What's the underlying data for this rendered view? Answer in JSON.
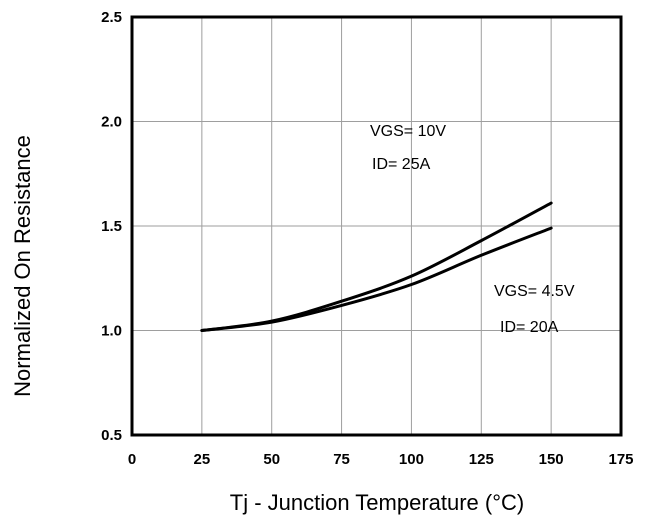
{
  "chart_data": {
    "type": "line",
    "xlabel": "Tj - Junction Temperature (°C)",
    "ylabel": "Normalized On Resistance",
    "xlim": [
      0,
      175
    ],
    "ylim": [
      0.5,
      2.5
    ],
    "x_ticks": [
      0,
      25,
      50,
      75,
      100,
      125,
      150,
      175
    ],
    "x_tick_labels": [
      "0",
      "25",
      "50",
      "75",
      "100",
      "125",
      "150",
      "175"
    ],
    "y_ticks": [
      0.5,
      1.0,
      1.5,
      2.0,
      2.5
    ],
    "y_tick_labels": [
      "0.5",
      "1.0",
      "1.5",
      "2.0",
      "2.5"
    ],
    "grid": true,
    "series": [
      {
        "x": [
          25,
          50,
          75,
          100,
          125,
          150
        ],
        "y": [
          1.0,
          1.045,
          1.14,
          1.26,
          1.43,
          1.61
        ]
      },
      {
        "x": [
          25,
          50,
          75,
          100,
          125,
          150
        ],
        "y": [
          1.0,
          1.04,
          1.12,
          1.22,
          1.36,
          1.49
        ]
      }
    ],
    "annotations": [
      {
        "lines": [
          "VGS= 10V",
          "ID= 25A"
        ]
      },
      {
        "lines": [
          "VGS= 4.5V",
          "ID= 20A"
        ]
      }
    ]
  }
}
